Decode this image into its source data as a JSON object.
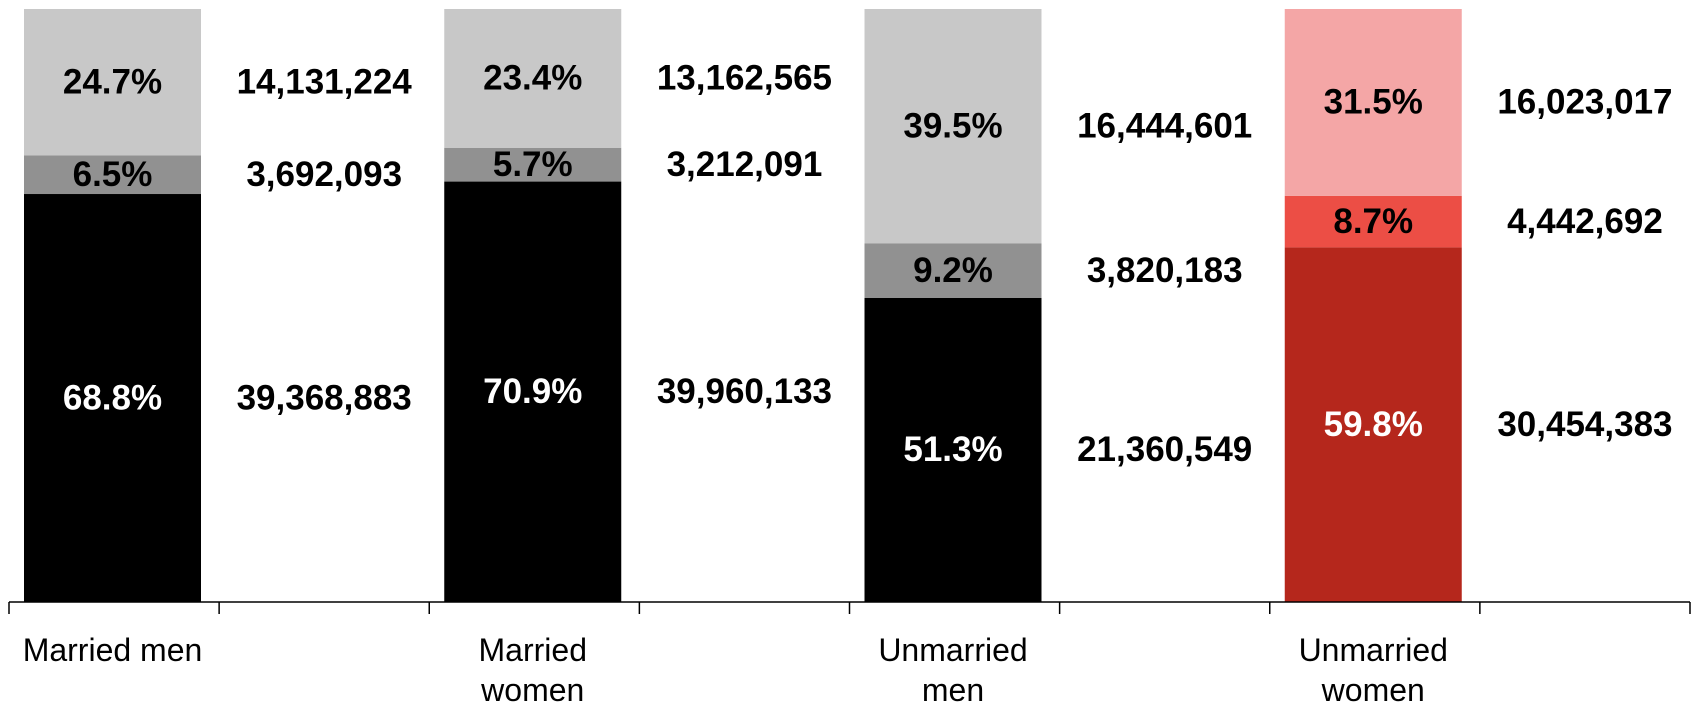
{
  "chart_data": {
    "type": "stacked-bar",
    "categories": [
      "Married men",
      "Married women",
      "Unmarried men",
      "Unmarried women"
    ],
    "ylim": [
      0,
      100
    ],
    "series": [
      {
        "values": [
          68.8,
          70.9,
          51.3,
          59.8
        ],
        "value_labels": [
          "68.8%",
          "70.9%",
          "51.3%",
          "59.8%"
        ],
        "colors": [
          "#000000",
          "#000000",
          "#000000",
          "#b5271c"
        ],
        "counts": [
          39368883,
          39960133,
          21360549,
          30454383
        ],
        "count_labels": [
          "39,368,883",
          "39,960,133",
          "21,360,549",
          "30,454,383"
        ]
      },
      {
        "values": [
          6.5,
          5.7,
          9.2,
          8.7
        ],
        "value_labels": [
          "6.5%",
          "5.7%",
          "9.2%",
          "8.7%"
        ],
        "colors": [
          "#919191",
          "#919191",
          "#919191",
          "#ec4e45"
        ],
        "counts": [
          3692093,
          3212091,
          3820183,
          4442692
        ],
        "count_labels": [
          "3,692,093",
          "3,212,091",
          "3,820,183",
          "4,442,692"
        ]
      },
      {
        "values": [
          24.7,
          23.4,
          39.5,
          31.5
        ],
        "value_labels": [
          "24.7%",
          "23.4%",
          "39.5%",
          "31.5%"
        ],
        "colors": [
          "#c8c8c8",
          "#c8c8c8",
          "#c8c8c8",
          "#f4a6a6"
        ],
        "counts": [
          14131224,
          13162565,
          16444601,
          16023017
        ],
        "count_labels": [
          "14,131,224",
          "13,162,565",
          "16,444,601",
          "16,023,017"
        ]
      }
    ]
  }
}
